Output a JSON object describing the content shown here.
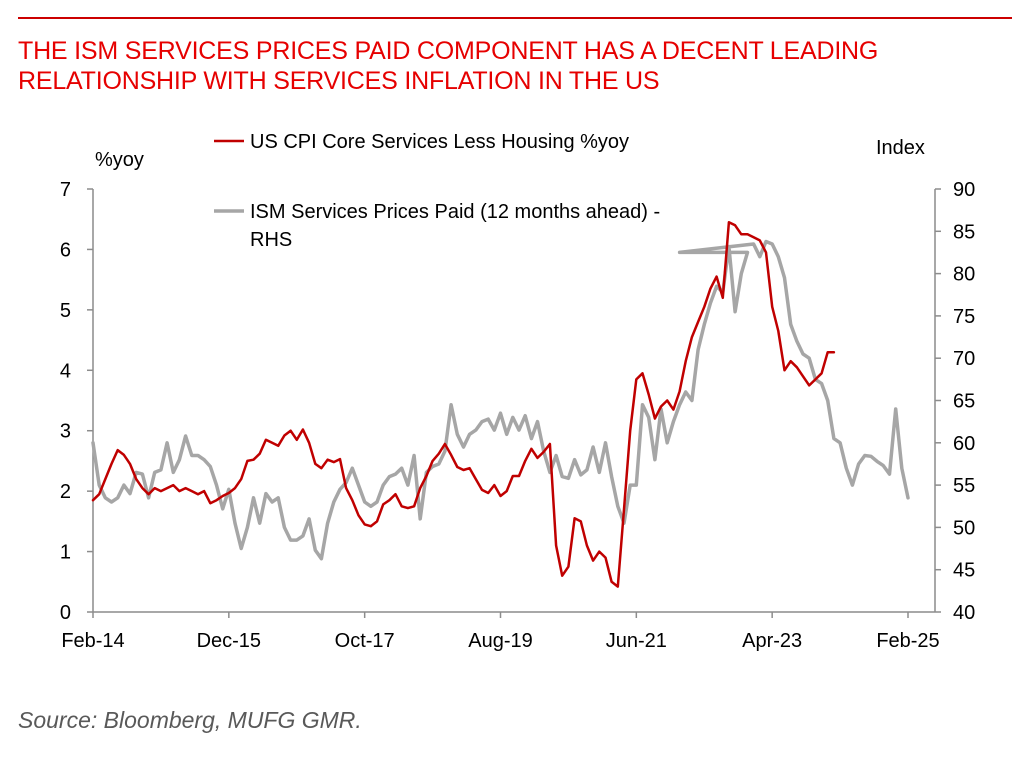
{
  "title": {
    "line1": "THE ISM SERVICES PRICES PAID COMPONENT HAS A DECENT LEADING",
    "line2": "RELATIONSHIP WITH SERVICES INFLATION IN THE US"
  },
  "source": "Source: Bloomberg, MUFG GMR.",
  "colors": {
    "accent": "#e60000",
    "cpi": "#c00000",
    "ism": "#a6a6a6"
  },
  "chart_data": {
    "type": "line",
    "ylabel_left": "%yoy",
    "ylabel_right": "Index",
    "ylim_left": [
      0,
      7
    ],
    "ylim_right": [
      40,
      90
    ],
    "yticks_left": [
      "0",
      "1",
      "2",
      "3",
      "4",
      "5",
      "6",
      "7"
    ],
    "yticks_right": [
      "40",
      "45",
      "50",
      "55",
      "60",
      "65",
      "70",
      "75",
      "80",
      "85",
      "90"
    ],
    "xlim": [
      "2014-02",
      "2025-02"
    ],
    "xticks": [
      {
        "date": "2014-02",
        "label": "Feb-14"
      },
      {
        "date": "2015-12",
        "label": "Dec-15"
      },
      {
        "date": "2017-10",
        "label": "Oct-17"
      },
      {
        "date": "2019-08",
        "label": "Aug-19"
      },
      {
        "date": "2021-06",
        "label": "Jun-21"
      },
      {
        "date": "2023-04",
        "label": "Apr-23"
      },
      {
        "date": "2025-02",
        "label": "Feb-25"
      }
    ],
    "legend": [
      {
        "name": "US CPI Core Services Less Housing %yoy",
        "color": "#c00000"
      },
      {
        "name_line1": "ISM Services Prices Paid (12 months ahead) -",
        "name_line2": "RHS",
        "color": "#a6a6a6"
      }
    ],
    "series": [
      {
        "name": "US CPI Core Services Less Housing %yoy",
        "axis": "left",
        "color": "#c00000",
        "points": [
          [
            "2014-02",
            1.85
          ],
          [
            "2014-03",
            1.95
          ],
          [
            "2014-04",
            2.2
          ],
          [
            "2014-05",
            2.45
          ],
          [
            "2014-06",
            2.68
          ],
          [
            "2014-07",
            2.6
          ],
          [
            "2014-08",
            2.45
          ],
          [
            "2014-09",
            2.2
          ],
          [
            "2014-10",
            2.05
          ],
          [
            "2014-11",
            1.95
          ],
          [
            "2014-12",
            2.05
          ],
          [
            "2015-01",
            2.0
          ],
          [
            "2015-02",
            2.05
          ],
          [
            "2015-03",
            2.1
          ],
          [
            "2015-04",
            2.0
          ],
          [
            "2015-05",
            2.05
          ],
          [
            "2015-06",
            2.0
          ],
          [
            "2015-07",
            1.95
          ],
          [
            "2015-08",
            2.0
          ],
          [
            "2015-09",
            1.8
          ],
          [
            "2015-10",
            1.85
          ],
          [
            "2015-11",
            1.92
          ],
          [
            "2015-12",
            1.97
          ],
          [
            "2016-01",
            2.05
          ],
          [
            "2016-02",
            2.2
          ],
          [
            "2016-03",
            2.5
          ],
          [
            "2016-04",
            2.52
          ],
          [
            "2016-05",
            2.62
          ],
          [
            "2016-06",
            2.85
          ],
          [
            "2016-07",
            2.8
          ],
          [
            "2016-08",
            2.75
          ],
          [
            "2016-09",
            2.92
          ],
          [
            "2016-10",
            3.0
          ],
          [
            "2016-11",
            2.85
          ],
          [
            "2016-12",
            3.02
          ],
          [
            "2017-01",
            2.8
          ],
          [
            "2017-02",
            2.45
          ],
          [
            "2017-03",
            2.38
          ],
          [
            "2017-04",
            2.52
          ],
          [
            "2017-05",
            2.48
          ],
          [
            "2017-06",
            2.53
          ],
          [
            "2017-07",
            2.05
          ],
          [
            "2017-08",
            1.85
          ],
          [
            "2017-09",
            1.6
          ],
          [
            "2017-10",
            1.45
          ],
          [
            "2017-11",
            1.42
          ],
          [
            "2017-12",
            1.5
          ],
          [
            "2018-01",
            1.78
          ],
          [
            "2018-02",
            1.85
          ],
          [
            "2018-03",
            1.95
          ],
          [
            "2018-04",
            1.75
          ],
          [
            "2018-05",
            1.72
          ],
          [
            "2018-06",
            1.75
          ],
          [
            "2018-07",
            2.05
          ],
          [
            "2018-08",
            2.25
          ],
          [
            "2018-09",
            2.5
          ],
          [
            "2018-10",
            2.62
          ],
          [
            "2018-11",
            2.78
          ],
          [
            "2018-12",
            2.6
          ],
          [
            "2019-01",
            2.4
          ],
          [
            "2019-02",
            2.35
          ],
          [
            "2019-03",
            2.38
          ],
          [
            "2019-04",
            2.2
          ],
          [
            "2019-05",
            2.02
          ],
          [
            "2019-06",
            1.97
          ],
          [
            "2019-07",
            2.1
          ],
          [
            "2019-08",
            1.92
          ],
          [
            "2019-09",
            2.0
          ],
          [
            "2019-10",
            2.25
          ],
          [
            "2019-11",
            2.25
          ],
          [
            "2019-12",
            2.5
          ],
          [
            "2020-01",
            2.7
          ],
          [
            "2020-02",
            2.55
          ],
          [
            "2020-03",
            2.65
          ],
          [
            "2020-04",
            2.78
          ],
          [
            "2020-05",
            1.1
          ],
          [
            "2020-06",
            0.6
          ],
          [
            "2020-07",
            0.75
          ],
          [
            "2020-08",
            1.55
          ],
          [
            "2020-09",
            1.5
          ],
          [
            "2020-10",
            1.1
          ],
          [
            "2020-11",
            0.85
          ],
          [
            "2020-12",
            1.0
          ],
          [
            "2021-01",
            0.9
          ],
          [
            "2021-02",
            0.5
          ],
          [
            "2021-03",
            0.42
          ],
          [
            "2021-04",
            1.7
          ],
          [
            "2021-05",
            3.0
          ],
          [
            "2021-06",
            3.85
          ],
          [
            "2021-07",
            3.95
          ],
          [
            "2021-08",
            3.6
          ],
          [
            "2021-09",
            3.2
          ],
          [
            "2021-10",
            3.4
          ],
          [
            "2021-11",
            3.5
          ],
          [
            "2021-12",
            3.35
          ],
          [
            "2022-01",
            3.65
          ],
          [
            "2022-02",
            4.15
          ],
          [
            "2022-03",
            4.55
          ],
          [
            "2022-04",
            4.8
          ],
          [
            "2022-05",
            5.05
          ],
          [
            "2022-06",
            5.35
          ],
          [
            "2022-07",
            5.55
          ],
          [
            "2022-08",
            5.2
          ],
          [
            "2022-09",
            6.45
          ],
          [
            "2022-10",
            6.4
          ],
          [
            "2022-11",
            6.25
          ],
          [
            "2022-12",
            6.25
          ],
          [
            "2023-01",
            6.2
          ],
          [
            "2023-02",
            6.15
          ],
          [
            "2023-03",
            5.95
          ],
          [
            "2023-04",
            5.05
          ],
          [
            "2023-05",
            4.65
          ],
          [
            "2023-06",
            4.0
          ],
          [
            "2023-07",
            4.15
          ],
          [
            "2023-08",
            4.05
          ],
          [
            "2023-09",
            3.9
          ],
          [
            "2023-10",
            3.75
          ],
          [
            "2023-11",
            3.85
          ],
          [
            "2023-12",
            3.95
          ],
          [
            "2024-01",
            4.3
          ],
          [
            "2024-02",
            4.3
          ]
        ]
      },
      {
        "name": "ISM Services Prices Paid (12 months ahead) - RHS",
        "axis": "right",
        "color": "#a6a6a6",
        "points": [
          [
            "2014-02",
            60.0
          ],
          [
            "2014-03",
            55.0
          ],
          [
            "2014-04",
            53.5
          ],
          [
            "2014-05",
            53.0
          ],
          [
            "2014-06",
            53.5
          ],
          [
            "2014-07",
            55.0
          ],
          [
            "2014-08",
            54.0
          ],
          [
            "2014-09",
            56.5
          ],
          [
            "2014-10",
            56.3
          ],
          [
            "2014-11",
            53.5
          ],
          [
            "2014-12",
            56.5
          ],
          [
            "2015-01",
            56.8
          ],
          [
            "2015-02",
            60.0
          ],
          [
            "2015-03",
            56.5
          ],
          [
            "2015-04",
            58.0
          ],
          [
            "2015-05",
            60.8
          ],
          [
            "2015-06",
            58.5
          ],
          [
            "2015-07",
            58.5
          ],
          [
            "2015-08",
            58.0
          ],
          [
            "2015-09",
            57.2
          ],
          [
            "2015-10",
            55.0
          ],
          [
            "2015-11",
            52.2
          ],
          [
            "2015-12",
            54.5
          ],
          [
            "2016-01",
            50.5
          ],
          [
            "2016-02",
            47.5
          ],
          [
            "2016-03",
            50.0
          ],
          [
            "2016-04",
            53.5
          ],
          [
            "2016-05",
            50.5
          ],
          [
            "2016-06",
            54.0
          ],
          [
            "2016-07",
            53.0
          ],
          [
            "2016-08",
            53.5
          ],
          [
            "2016-09",
            50.0
          ],
          [
            "2016-10",
            48.5
          ],
          [
            "2016-11",
            48.5
          ],
          [
            "2016-12",
            49.0
          ],
          [
            "2017-01",
            51.0
          ],
          [
            "2017-02",
            47.3
          ],
          [
            "2017-03",
            46.3
          ],
          [
            "2017-04",
            50.5
          ],
          [
            "2017-05",
            53.0
          ],
          [
            "2017-06",
            54.5
          ],
          [
            "2017-07",
            55.3
          ],
          [
            "2017-08",
            57.0
          ],
          [
            "2017-09",
            55.0
          ],
          [
            "2017-10",
            53.0
          ],
          [
            "2017-11",
            52.5
          ],
          [
            "2017-12",
            53.0
          ],
          [
            "2018-01",
            55.0
          ],
          [
            "2018-02",
            56.0
          ],
          [
            "2018-03",
            56.3
          ],
          [
            "2018-04",
            57.0
          ],
          [
            "2018-05",
            55.0
          ],
          [
            "2018-06",
            58.5
          ],
          [
            "2018-07",
            51.0
          ],
          [
            "2018-08",
            56.5
          ],
          [
            "2018-09",
            57.2
          ],
          [
            "2018-10",
            57.5
          ],
          [
            "2018-11",
            59.0
          ],
          [
            "2018-12",
            64.5
          ],
          [
            "2019-01",
            61.0
          ],
          [
            "2019-02",
            59.5
          ],
          [
            "2019-03",
            61.0
          ],
          [
            "2019-04",
            61.5
          ],
          [
            "2019-05",
            62.5
          ],
          [
            "2019-06",
            62.8
          ],
          [
            "2019-07",
            61.5
          ],
          [
            "2019-08",
            63.5
          ],
          [
            "2019-09",
            61.0
          ],
          [
            "2019-10",
            63.0
          ],
          [
            "2019-11",
            61.5
          ],
          [
            "2019-12",
            63.2
          ],
          [
            "2020-01",
            60.5
          ],
          [
            "2020-02",
            62.5
          ],
          [
            "2020-03",
            59.0
          ],
          [
            "2020-04",
            56.5
          ],
          [
            "2020-05",
            58.5
          ],
          [
            "2020-06",
            56.0
          ],
          [
            "2020-07",
            55.8
          ],
          [
            "2020-08",
            58.0
          ],
          [
            "2020-09",
            56.2
          ],
          [
            "2020-10",
            56.8
          ],
          [
            "2020-11",
            59.5
          ],
          [
            "2020-12",
            56.5
          ],
          [
            "2021-01",
            60.0
          ],
          [
            "2021-02",
            56.0
          ],
          [
            "2021-03",
            52.5
          ],
          [
            "2021-04",
            50.5
          ],
          [
            "2021-05",
            55.0
          ],
          [
            "2021-06",
            55.0
          ],
          [
            "2021-07",
            64.5
          ],
          [
            "2021-08",
            63.0
          ],
          [
            "2021-09",
            58.0
          ],
          [
            "2021-10",
            64.0
          ],
          [
            "2021-11",
            60.0
          ],
          [
            "2021-12",
            62.5
          ],
          [
            "2022-01",
            64.5
          ],
          [
            "2022-02",
            66.0
          ],
          [
            "2022-03",
            65.0
          ],
          [
            "2022-04",
            71.0
          ],
          [
            "2022-05",
            74.0
          ],
          [
            "2022-06",
            76.5
          ],
          [
            "2022-07",
            78.5
          ],
          [
            "2022-08",
            77.8
          ],
          [
            "2022-09",
            83.2
          ],
          [
            "2022-10",
            75.5
          ],
          [
            "2022-11",
            80.0
          ],
          [
            "2022-12",
            82.5
          ],
          [
            "2022-01",
            82.5
          ],
          [
            "2023-01",
            83.5
          ],
          [
            "2023-02",
            82.0
          ],
          [
            "2023-03",
            83.8
          ],
          [
            "2023-04",
            83.5
          ],
          [
            "2023-05",
            82.0
          ],
          [
            "2023-06",
            79.5
          ],
          [
            "2023-07",
            74.0
          ],
          [
            "2023-08",
            72.0
          ],
          [
            "2023-09",
            70.5
          ],
          [
            "2023-10",
            70.0
          ],
          [
            "2023-11",
            67.5
          ],
          [
            "2023-12",
            67.0
          ],
          [
            "2024-01",
            65.0
          ],
          [
            "2024-02",
            60.5
          ],
          [
            "2024-03",
            60.0
          ],
          [
            "2024-04",
            57.0
          ],
          [
            "2024-05",
            55.0
          ],
          [
            "2024-06",
            57.5
          ],
          [
            "2024-07",
            58.5
          ],
          [
            "2024-08",
            58.4
          ],
          [
            "2024-09",
            57.8
          ],
          [
            "2024-10",
            57.3
          ],
          [
            "2024-11",
            56.3
          ],
          [
            "2024-12",
            64.0
          ],
          [
            "2025-01",
            57.0
          ],
          [
            "2025-02",
            53.5
          ]
        ]
      }
    ]
  }
}
